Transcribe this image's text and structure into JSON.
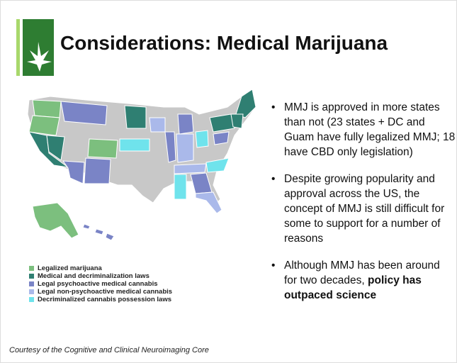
{
  "header": {
    "title": "Considerations: Medical Marijuana"
  },
  "legend": [
    {
      "label": "Legalized marijuana",
      "color": "#7cbf7e"
    },
    {
      "label": "Medical and decriminalization laws",
      "color": "#2f7f72"
    },
    {
      "label": "Legal psychoactive medical cannabis",
      "color": "#7a84c6"
    },
    {
      "label": "Legal non-psychoactive medical cannabis",
      "color": "#aab9ea"
    },
    {
      "label": "Decriminalized cannabis possession laws",
      "color": "#6fe3ec"
    }
  ],
  "bullets": [
    {
      "text": "MMJ is approved in more states than not (23 states + DC and Guam have fully legalized MMJ; 18 have CBD only legislation)"
    },
    {
      "text": "Despite growing popularity and approval across the US, the concept of  MMJ is still difficult for some to support for a number of reasons"
    },
    {
      "text": "Although MMJ has been around for two decades, ",
      "bold": "policy has outpaced science"
    }
  ],
  "footer": {
    "credit": "Courtesy of the Cognitive and Clinical Neuroimaging Core"
  }
}
